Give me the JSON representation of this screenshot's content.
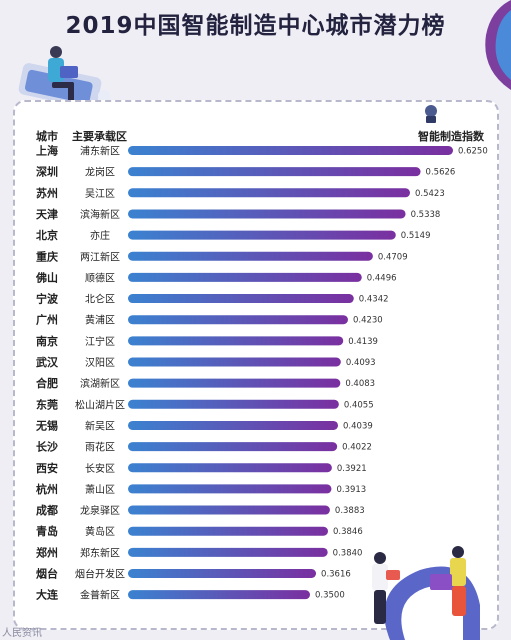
{
  "title": "2019中国智能制造中心城市潜力榜",
  "watermark": "人民资讯",
  "header": {
    "city": "城市",
    "zone": "主要承载区",
    "index": "智能制造指数"
  },
  "colors": {
    "bar_start": "#3b82d0",
    "bar_end": "#7a2fa0",
    "panel_border": "#b8b8cc",
    "background": "#efeef5"
  },
  "chart_data": {
    "type": "bar",
    "orientation": "horizontal",
    "title": "2019中国智能制造中心城市潜力榜",
    "categories": [
      "上海",
      "深圳",
      "苏州",
      "天津",
      "北京",
      "重庆",
      "佛山",
      "宁波",
      "广州",
      "南京",
      "武汉",
      "合肥",
      "东莞",
      "无锡",
      "长沙",
      "西安",
      "杭州",
      "成都",
      "青岛",
      "郑州",
      "烟台",
      "大连"
    ],
    "zones": [
      "浦东新区",
      "龙岗区",
      "吴江区",
      "滨海新区",
      "亦庄",
      "两江新区",
      "顺德区",
      "北仑区",
      "黄浦区",
      "江宁区",
      "汉阳区",
      "滨湖新区",
      "松山湖片区",
      "新吴区",
      "雨花区",
      "长安区",
      "萧山区",
      "龙泉驿区",
      "黄岛区",
      "郑东新区",
      "烟台开发区",
      "金普新区"
    ],
    "value_labels": [
      "0.6250",
      "0.5626",
      "0.5423",
      "0.5338",
      "0.5149",
      "0.4709",
      "0.4496",
      "0.4342",
      "0.4230",
      "0.4139",
      "0.4093",
      "0.4083",
      "0.4055",
      "0.4039",
      "0.4022",
      "0.3921",
      "0.3913",
      "0.3883",
      "0.3846",
      "0.3840",
      "0.3616",
      "0.3500"
    ],
    "series": [
      {
        "name": "智能制造指数",
        "values": [
          0.625,
          0.5626,
          0.5423,
          0.5338,
          0.5149,
          0.4709,
          0.4496,
          0.4342,
          0.423,
          0.4139,
          0.4093,
          0.4083,
          0.4055,
          0.4039,
          0.4022,
          0.3921,
          0.3913,
          0.3883,
          0.3846,
          0.384,
          0.3616,
          0.35
        ]
      }
    ],
    "xlim": [
      0,
      0.625
    ],
    "grid": false,
    "legend": "none"
  }
}
